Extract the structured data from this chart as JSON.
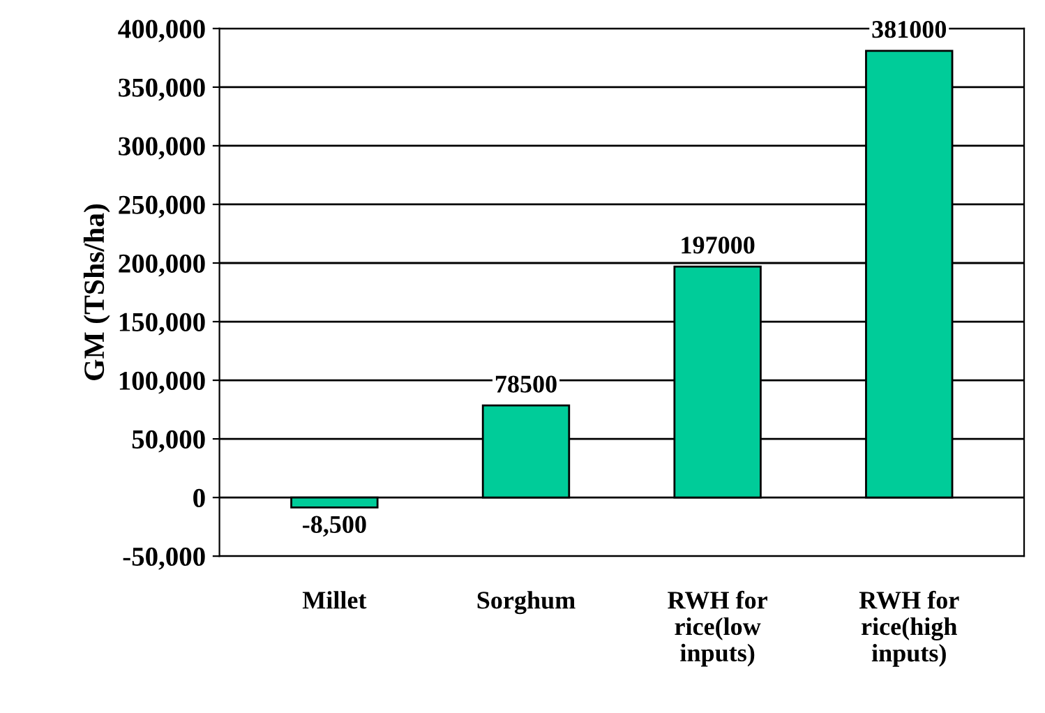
{
  "chart_data": {
    "type": "bar",
    "ylabel": "GM (TShs/ha)",
    "categories": [
      "Millet",
      "Sorghum",
      "RWH for\nrice(low\ninputs)",
      "RWH for\nrice(high\ninputs)"
    ],
    "values": [
      -8500,
      78500,
      197000,
      381000
    ],
    "value_labels": [
      "-8,500",
      "78500",
      "197000",
      "381000"
    ],
    "color": "#00cc99",
    "ylim": [
      -50000,
      400000
    ],
    "yticks": [
      {
        "value": -50000,
        "label": "-50,000"
      },
      0,
      {
        "value": 50000,
        "label": "50,000"
      },
      {
        "value": 100000,
        "label": "100,000"
      },
      {
        "value": 150000,
        "label": "150,000"
      },
      {
        "value": 200000,
        "label": "200,000"
      },
      {
        "value": 250000,
        "label": "250,000"
      },
      {
        "value": 300000,
        "label": "300,000"
      },
      {
        "value": 350000,
        "label": "350,000"
      },
      {
        "value": 400000,
        "label": "400,000"
      }
    ],
    "grid": "y"
  }
}
